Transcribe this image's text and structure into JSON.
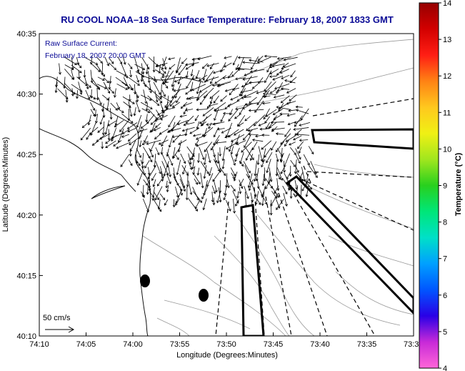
{
  "title": "RU COOL  NOAA–18  Sea Surface Temperature:  February 18, 2007 1833 GMT",
  "overlay": {
    "line1": "Raw Surface Current:",
    "line2": "February 18, 2007 20:00 GMT"
  },
  "scale": {
    "label": "50 cm/s"
  },
  "x_axis": {
    "label": "Longitude (Degrees:Minutes)",
    "ticks": [
      "74:10",
      "74:05",
      "74:00",
      "73:55",
      "73:50",
      "73:45",
      "73:40",
      "73:35",
      "73:3"
    ]
  },
  "y_axis": {
    "label": "Latitude (Degrees:Minutes)",
    "ticks": [
      "40:35",
      "40:30",
      "40:25",
      "40:20",
      "40:15",
      "40:10"
    ]
  },
  "colorbar": {
    "label": "Temperature (°C)",
    "ticks": [
      "14",
      "13",
      "12",
      "11",
      "10",
      "9",
      "8",
      "7",
      "6",
      "5",
      "4"
    ],
    "min": 4,
    "max": 14,
    "colors": [
      "#ff66d8",
      "#c82ad8",
      "#2a00e6",
      "#0055ff",
      "#00a0ff",
      "#00e0c8",
      "#00e678",
      "#28d01e",
      "#a0e61e",
      "#f0f014",
      "#ffc81e",
      "#ff8214",
      "#ff1e14",
      "#d20000",
      "#960000"
    ]
  }
}
